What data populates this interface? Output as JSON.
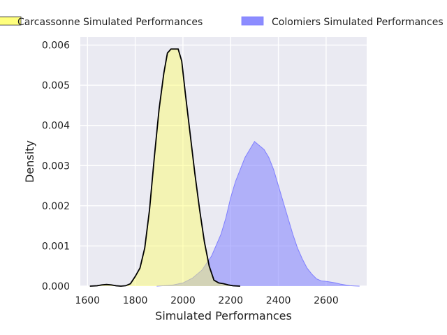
{
  "chart_data": {
    "type": "area",
    "xlabel": "Simulated Performances",
    "ylabel": "Density",
    "xlim": [
      1570,
      2770
    ],
    "ylim": [
      0,
      0.0062
    ],
    "xticks": [
      1600,
      1800,
      2000,
      2200,
      2400,
      2600
    ],
    "yticks": [
      0,
      0.001,
      0.002,
      0.003,
      0.004,
      0.005,
      0.006
    ],
    "xtick_labels": [
      "1600",
      "1800",
      "2000",
      "2200",
      "2400",
      "2600"
    ],
    "ytick_labels": [
      "0.000",
      "0.001",
      "0.002",
      "0.003",
      "0.004",
      "0.005",
      "0.006"
    ],
    "grid": true,
    "background": "#eaeaf2",
    "legend_position": "top",
    "series": [
      {
        "name": "Carcassonne Simulated Performances",
        "fill": "#ffff66",
        "fill_opacity": 0.45,
        "line": "#000000",
        "x": [
          1610,
          1640,
          1660,
          1680,
          1700,
          1720,
          1740,
          1760,
          1780,
          1800,
          1820,
          1840,
          1860,
          1880,
          1900,
          1920,
          1935,
          1950,
          1965,
          1980,
          1995,
          2010,
          2030,
          2050,
          2070,
          2090,
          2110,
          2130,
          2150,
          2170,
          2190,
          2210,
          2240
        ],
        "y": [
          0,
          1e-05,
          3e-05,
          4e-05,
          3e-05,
          1e-05,
          0,
          1e-05,
          6e-05,
          0.00024,
          0.00045,
          0.00095,
          0.0019,
          0.0032,
          0.0044,
          0.0053,
          0.0058,
          0.0059,
          0.0059,
          0.0059,
          0.0056,
          0.0048,
          0.0038,
          0.0028,
          0.0019,
          0.0011,
          0.0005,
          0.00015,
          8e-05,
          6e-05,
          3e-05,
          1e-05,
          0
        ]
      },
      {
        "name": "Colomiers Simulated Performances",
        "fill": "#7f7fff",
        "fill_opacity": 0.55,
        "line": "#7f7fff",
        "x": [
          1890,
          1920,
          1960,
          2000,
          2040,
          2080,
          2120,
          2160,
          2180,
          2200,
          2220,
          2240,
          2260,
          2280,
          2300,
          2320,
          2340,
          2360,
          2380,
          2400,
          2420,
          2440,
          2460,
          2480,
          2500,
          2520,
          2540,
          2560,
          2580,
          2600,
          2620,
          2640,
          2660,
          2680,
          2700,
          2720,
          2740
        ],
        "y": [
          0,
          1e-05,
          3e-05,
          8e-05,
          0.0002,
          0.0004,
          0.00075,
          0.0013,
          0.0017,
          0.0022,
          0.0026,
          0.0029,
          0.0032,
          0.0034,
          0.0036,
          0.0035,
          0.0034,
          0.0032,
          0.0029,
          0.0025,
          0.0021,
          0.0017,
          0.0013,
          0.00095,
          0.00068,
          0.00045,
          0.0003,
          0.00018,
          0.00013,
          0.00012,
          0.0001,
          8e-05,
          5e-05,
          3e-05,
          1e-05,
          5e-06,
          0
        ]
      }
    ]
  }
}
